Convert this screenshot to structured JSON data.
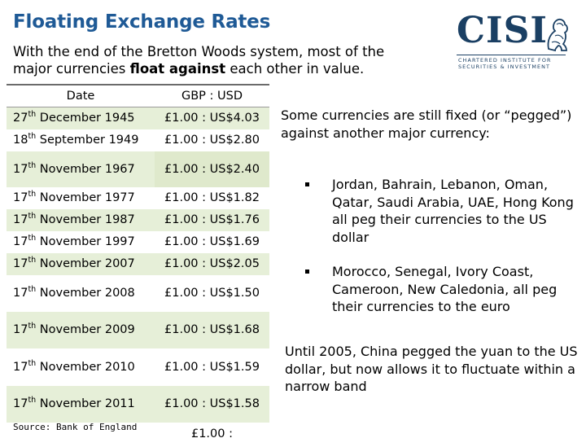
{
  "title": "Floating Exchange Rates",
  "subtitle": {
    "before": "With the end of the Bretton Woods system, most of the major currencies ",
    "bold": "float against",
    "after": " each other in value."
  },
  "logo": {
    "name": "CISI",
    "line1": "CHARTERED INSTITUTE FOR",
    "line2": "SECURITIES & INVESTMENT",
    "icon": "lion-icon"
  },
  "table": {
    "headers": [
      "Date",
      "GBP : USD"
    ],
    "rows": [
      {
        "day": "27",
        "ord": "th",
        "rest": " December 1945",
        "rate": "£1.00  :  US$4.03"
      },
      {
        "day": "18",
        "ord": "th",
        "rest": " September 1949",
        "rate": "£1.00  :  US$2.80"
      },
      {
        "day": "17",
        "ord": "th",
        "rest": " November 1967",
        "rate": "£1.00  :  US$2.40"
      },
      {
        "day": "17",
        "ord": "th",
        "rest": " November 1977",
        "rate": "£1.00  :  US$1.82"
      },
      {
        "day": "17",
        "ord": "th",
        "rest": " November 1987",
        "rate": "£1.00  :  US$1.76"
      },
      {
        "day": "17",
        "ord": "th",
        "rest": " November 1997",
        "rate": "£1.00  :  US$1.69"
      },
      {
        "day": "17",
        "ord": "th",
        "rest": " November 2007",
        "rate": "£1.00  :  US$2.05"
      },
      {
        "day": "17",
        "ord": "th",
        "rest": " November 2008",
        "rate": "£1.00  :  US$1.50"
      },
      {
        "day": "17",
        "ord": "th",
        "rest": " November 2009",
        "rate": "£1.00  :  US$1.68"
      },
      {
        "day": "17",
        "ord": "th",
        "rest": " November 2010",
        "rate": "£1.00  :  US$1.59"
      },
      {
        "day": "17",
        "ord": "th",
        "rest": " November 2011",
        "rate": "£1.00  :  US$1.58"
      }
    ],
    "partial_rate": "£1.00  :"
  },
  "source": "Source: Bank of England",
  "intro": "Some currencies are still fixed (or “pegged”) against another major currency:",
  "bullets": [
    "Jordan, Bahrain, Lebanon, Oman, Qatar, Saudi Arabia, UAE, Hong Kong all peg their currencies to the US dollar",
    "Morocco, Senegal, Ivory Coast, Cameroon, New Caledonia, all peg their currencies to the euro"
  ],
  "closing": "Until 2005, China pegged the yuan to the US dollar, but now allows it to fluctuate within a narrow band",
  "colors": {
    "title": "#1f5a96",
    "logo": "#1a3f63",
    "row_band": "#e6efd8"
  }
}
